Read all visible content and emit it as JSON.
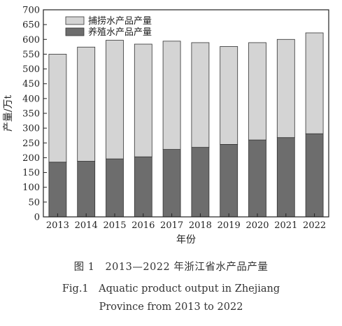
{
  "chart_data": {
    "type": "bar",
    "stacked": true,
    "categories": [
      "2013",
      "2014",
      "2015",
      "2016",
      "2017",
      "2018",
      "2019",
      "2020",
      "2021",
      "2022"
    ],
    "series": [
      {
        "name": "养殖水产品产量",
        "values": [
          185,
          188,
          196,
          203,
          228,
          235,
          245,
          260,
          268,
          281
        ],
        "color": "#6d6d6d"
      },
      {
        "name": "捕捞水产品产量",
        "values": [
          365,
          386,
          401,
          381,
          366,
          354,
          331,
          329,
          332,
          341
        ],
        "color": "#d4d4d4"
      }
    ],
    "legend_order": [
      "捕捞水产品产量",
      "养殖水产品产量"
    ],
    "legend_position": "top-left",
    "xlabel": "年份",
    "ylabel": "产量/万t",
    "ylim": [
      0,
      700
    ],
    "yticks": [
      0,
      50,
      100,
      150,
      200,
      250,
      300,
      350,
      400,
      450,
      500,
      550,
      600,
      650,
      700
    ],
    "grid": false
  },
  "captions": {
    "zh": "图 1　2013—2022 年浙江省水产品产量",
    "en_line1": "Fig.1　Aquatic product output in Zhejiang",
    "en_line2": "Province from 2013 to 2022"
  }
}
